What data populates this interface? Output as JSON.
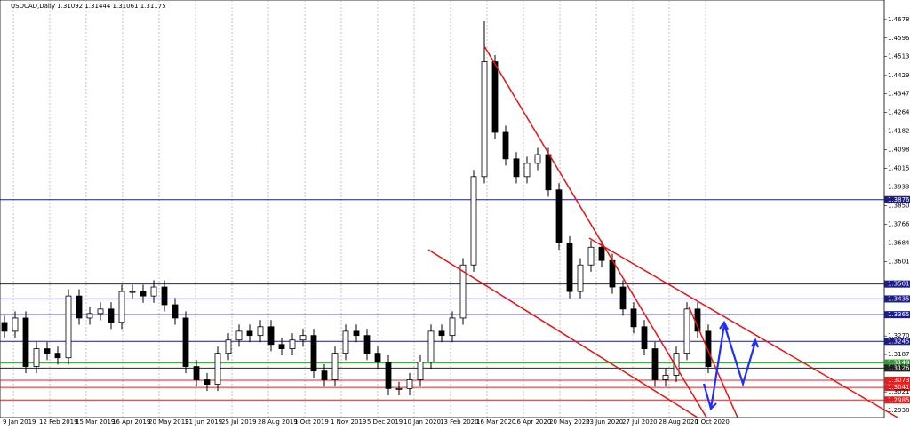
{
  "chart_data": {
    "type": "candlestick",
    "title": "USDCAD,Daily  1.31092 1.31444 1.31061 1.31175",
    "open": [
      1.333,
      1.3291,
      1.335,
      1.3134,
      1.3213,
      1.3193,
      1.3173,
      1.3448,
      1.335,
      1.337,
      1.339,
      1.3331,
      1.3468,
      1.3468,
      1.3448,
      1.3488,
      1.3409,
      1.335,
      1.3134,
      1.3075,
      1.3055,
      1.3193,
      1.3252,
      1.3291,
      1.3272,
      1.3311,
      1.3232,
      1.3213,
      1.3252,
      1.3272,
      1.3114,
      1.3075,
      1.3193,
      1.3291,
      1.3272,
      1.3193,
      1.3154,
      1.3036,
      1.3036,
      1.3075,
      1.3154,
      1.3291,
      1.3272,
      1.335,
      1.3586,
      1.3979,
      1.449,
      1.4176,
      1.4058,
      1.3979,
      1.4038,
      1.4077,
      1.392,
      1.3684,
      1.3468,
      1.3586,
      1.3665,
      1.3606,
      1.3488,
      1.339,
      1.3311,
      1.3213,
      1.3075,
      1.3095,
      1.3193,
      1.339,
      1.3291
    ],
    "high": [
      1.336,
      1.338,
      1.338,
      1.3243,
      1.3243,
      1.3223,
      1.3478,
      1.3478,
      1.34,
      1.342,
      1.342,
      1.3498,
      1.3498,
      1.3498,
      1.3518,
      1.3518,
      1.3439,
      1.338,
      1.3164,
      1.3105,
      1.3223,
      1.3282,
      1.3321,
      1.3321,
      1.3341,
      1.3341,
      1.3262,
      1.3282,
      1.3302,
      1.3302,
      1.3144,
      1.3223,
      1.3321,
      1.3321,
      1.3302,
      1.3223,
      1.3184,
      1.3066,
      1.3105,
      1.3184,
      1.3321,
      1.3321,
      1.338,
      1.3616,
      1.4009,
      1.467,
      1.452,
      1.4206,
      1.4088,
      1.4068,
      1.4107,
      1.4107,
      1.395,
      1.3714,
      1.3616,
      1.3695,
      1.3695,
      1.3636,
      1.3518,
      1.342,
      1.3341,
      1.3243,
      1.3125,
      1.3223,
      1.342,
      1.342,
      1.3321
    ],
    "low": [
      1.3261,
      1.3261,
      1.3104,
      1.3104,
      1.3163,
      1.3143,
      1.3143,
      1.332,
      1.332,
      1.334,
      1.3301,
      1.3301,
      1.3438,
      1.3418,
      1.3418,
      1.3379,
      1.332,
      1.3104,
      1.3045,
      1.3025,
      1.3025,
      1.3163,
      1.3222,
      1.3242,
      1.3242,
      1.3202,
      1.3183,
      1.3183,
      1.3222,
      1.3084,
      1.3045,
      1.3045,
      1.3163,
      1.3242,
      1.3163,
      1.3124,
      1.3006,
      1.3006,
      1.3006,
      1.3045,
      1.3124,
      1.3242,
      1.3242,
      1.332,
      1.3556,
      1.3949,
      1.4146,
      1.4028,
      1.3949,
      1.3949,
      1.4008,
      1.389,
      1.3654,
      1.3438,
      1.3438,
      1.3556,
      1.3576,
      1.3458,
      1.336,
      1.3281,
      1.3183,
      1.3045,
      1.3045,
      1.3065,
      1.3163,
      1.3261,
      1.3104
    ],
    "close": [
      1.3291,
      1.335,
      1.3134,
      1.3213,
      1.3193,
      1.3173,
      1.3448,
      1.335,
      1.337,
      1.339,
      1.3331,
      1.3468,
      1.3468,
      1.3448,
      1.3488,
      1.3409,
      1.335,
      1.3134,
      1.3075,
      1.3055,
      1.3193,
      1.3252,
      1.3291,
      1.3272,
      1.3311,
      1.3232,
      1.3213,
      1.3252,
      1.3272,
      1.3114,
      1.3075,
      1.3193,
      1.3291,
      1.3272,
      1.3193,
      1.3154,
      1.3036,
      1.3036,
      1.3075,
      1.3154,
      1.3291,
      1.3272,
      1.335,
      1.3586,
      1.3979,
      1.449,
      1.4176,
      1.4058,
      1.3979,
      1.4038,
      1.4077,
      1.392,
      1.3684,
      1.3468,
      1.3586,
      1.3665,
      1.3606,
      1.3488,
      1.339,
      1.3311,
      1.3213,
      1.3075,
      1.3095,
      1.3193,
      1.339,
      1.3291,
      1.3134
    ],
    "ylim": [
      1.2907,
      1.4765
    ],
    "yticks": [
      {
        "value": 1.46785,
        "label": "1.46785"
      },
      {
        "value": 1.4596,
        "label": "1.45960"
      },
      {
        "value": 1.45135,
        "label": "1.45135"
      },
      {
        "value": 1.44295,
        "label": "1.44295"
      },
      {
        "value": 1.4347,
        "label": "1.43470"
      },
      {
        "value": 1.42645,
        "label": "1.42645"
      },
      {
        "value": 1.4182,
        "label": "1.41820"
      },
      {
        "value": 1.4098,
        "label": "1.40980"
      },
      {
        "value": 1.40155,
        "label": "1.40155"
      },
      {
        "value": 1.3933,
        "label": "1.39330"
      },
      {
        "value": 1.38505,
        "label": "1.38505"
      },
      {
        "value": 1.37665,
        "label": "1.37665"
      },
      {
        "value": 1.3684,
        "label": "1.36840"
      },
      {
        "value": 1.36015,
        "label": "1.36015"
      },
      {
        "value": 1.327,
        "label": "1.32700"
      },
      {
        "value": 1.31875,
        "label": "1.31875"
      },
      {
        "value": 1.3021,
        "label": "1.30210"
      },
      {
        "value": 1.29385,
        "label": "1.29385"
      }
    ],
    "xtick_labels": [
      "9 Jan 2019",
      "12 Feb 2019",
      "15 Mar 2019",
      "16 Apr 2019",
      "20 May 2019",
      "21 Jun 2019",
      "25 Jul 2019",
      "28 Aug 2019",
      "1 Oct 2019",
      "1 Nov 2019",
      "5 Dec 2019",
      "10 Jan 2020",
      "13 Feb 2020",
      "16 Mar 2020",
      "16 Apr 2020",
      "20 May 2020",
      "23 Jun 2020",
      "27 Jul 2020",
      "28 Aug 2020",
      "1 Oct 2020"
    ],
    "levels": [
      {
        "value": 1.38765,
        "label": "1.38765",
        "color": "#1c1c8a"
      },
      {
        "value": 1.35013,
        "label": "1.35013",
        "color": "#1c1c8a"
      },
      {
        "value": 1.3435,
        "label": "1.34350",
        "color": "#1c1c8a"
      },
      {
        "value": 1.3365,
        "label": "1.33650",
        "color": "#1c1c8a"
      },
      {
        "value": 1.32458,
        "label": "1.32458",
        "color": "#1c1c8a"
      },
      {
        "value": 1.31498,
        "label": "1.31498",
        "color": "#2e9e2e"
      },
      {
        "value": 1.31269,
        "label": "1.31269",
        "color": "#222222"
      },
      {
        "value": 1.30731,
        "label": "1.30731",
        "color": "#e02020"
      },
      {
        "value": 1.3041,
        "label": "1.30410",
        "color": "#e02020"
      },
      {
        "value": 1.2985,
        "label": "1.29850",
        "color": "#e02020"
      }
    ]
  }
}
